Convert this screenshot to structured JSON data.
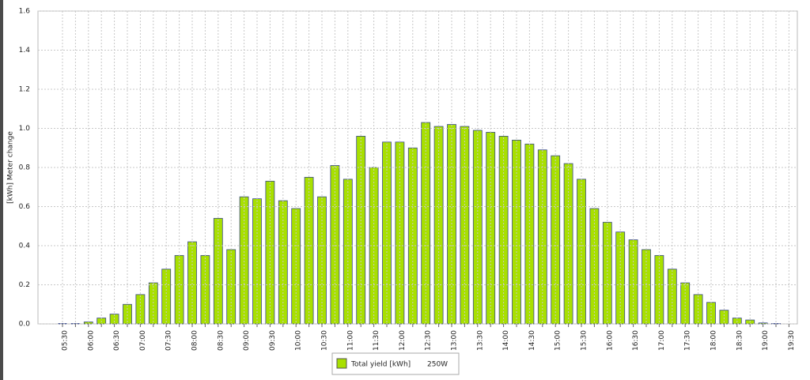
{
  "chart_data": {
    "type": "bar",
    "y_label": "[kWh] Meter change",
    "categories": [
      "05:30",
      null,
      "06:00",
      null,
      "06:30",
      null,
      "07:00",
      null,
      "07:30",
      null,
      "08:00",
      null,
      "08:30",
      null,
      "09:00",
      null,
      "09:30",
      null,
      "10:00",
      null,
      "10:30",
      null,
      "11:00",
      null,
      "11:30",
      null,
      "12:00",
      null,
      "12:30",
      null,
      "13:00",
      null,
      "13:30",
      null,
      "14:00",
      null,
      "14:30",
      null,
      "15:00",
      null,
      "15:30",
      null,
      "16:00",
      null,
      "16:30",
      null,
      "17:00",
      null,
      "17:30",
      null,
      "18:00",
      null,
      "18:30",
      null,
      "19:00",
      null,
      "19:30"
    ],
    "series": [
      {
        "name": "Total yield [kWh]",
        "color": "#a8e000",
        "values": [
          0.002,
          0.002,
          0.01,
          0.03,
          0.05,
          0.1,
          0.15,
          0.21,
          0.28,
          0.35,
          0.42,
          0.35,
          0.54,
          0.38,
          0.65,
          0.64,
          0.73,
          0.63,
          0.59,
          0.75,
          0.65,
          0.81,
          0.74,
          0.96,
          0.8,
          0.93,
          0.93,
          0.9,
          1.03,
          1.01,
          1.02,
          1.01,
          0.99,
          0.98,
          0.96,
          0.94,
          0.92,
          0.89,
          0.86,
          0.82,
          0.74,
          0.59,
          0.52,
          0.47,
          0.43,
          0.38,
          0.35,
          0.28,
          0.21,
          0.15,
          0.11,
          0.07,
          0.03,
          0.02,
          0.005,
          0.002,
          0
        ]
      }
    ],
    "legend_note": "250W",
    "ylim": [
      0,
      1.6
    ],
    "yticks": [
      {
        "value": 0,
        "label": "0.0"
      },
      {
        "value": 0.2,
        "label": "0.2"
      },
      {
        "value": 0.4,
        "label": "0.4"
      },
      {
        "value": 0.6,
        "label": "0.6"
      },
      {
        "value": 0.8,
        "label": "0.8"
      },
      {
        "value": 1.0,
        "label": "1.0"
      },
      {
        "value": 1.2,
        "label": "1.2"
      },
      {
        "value": 1.4,
        "label": "1.4"
      },
      {
        "value": 1.6,
        "label": "1.6"
      }
    ],
    "grid": true
  }
}
